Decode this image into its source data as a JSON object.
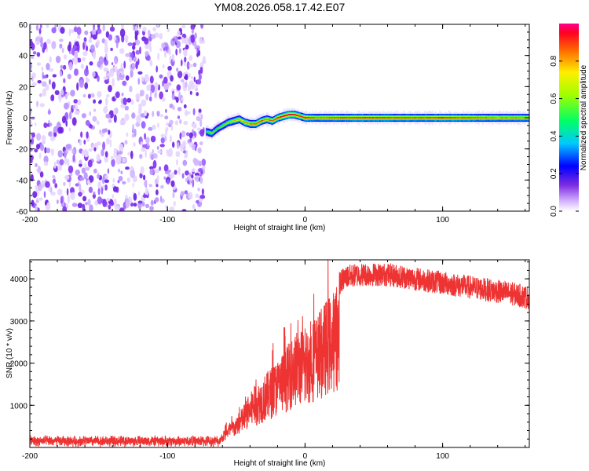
{
  "title": "YM08.2026.058.17.42.E07",
  "chart_data": [
    {
      "type": "heatmap",
      "name": "spectrogram",
      "xlabel": "Height of straight line (km)",
      "ylabel": "Frequency (Hz)",
      "xlim": [
        -200,
        163
      ],
      "ylim": [
        -60,
        60
      ],
      "x_ticks": [
        "-200",
        "-100",
        "0",
        "100"
      ],
      "y_ticks": [
        "60",
        "40",
        "20",
        "0",
        "-20",
        "-40",
        "-60"
      ],
      "noise_region_x": [
        -200,
        -73
      ],
      "ridge": {
        "x": [
          -72,
          -68,
          -64,
          -60,
          -56,
          -52,
          -48,
          -44,
          -40,
          -36,
          -32,
          -28,
          -24,
          -20,
          -16,
          -12,
          -8,
          -4,
          0,
          4,
          10,
          20,
          40,
          60,
          80,
          100,
          120,
          140,
          163
        ],
        "y": [
          -9,
          -10,
          -7,
          -5,
          -3,
          -2,
          -1,
          -3,
          -4,
          -4,
          -2,
          -1,
          -2,
          0,
          1,
          2,
          2,
          1,
          0,
          0,
          0,
          0,
          0,
          0,
          0,
          0,
          0,
          0,
          0
        ],
        "amplitude": [
          0.5,
          0.6,
          0.55,
          0.6,
          0.65,
          0.7,
          0.75,
          0.8,
          0.8,
          0.85,
          0.85,
          0.8,
          0.85,
          0.9,
          0.95,
          1.0,
          0.95,
          0.9,
          0.9,
          0.85,
          0.8,
          0.85,
          0.9,
          0.88,
          0.85,
          0.9,
          0.85,
          0.8,
          0.8
        ]
      },
      "colorbar": {
        "label": "Normalized spectral amplitude",
        "range": [
          0,
          1
        ],
        "ticks": [
          "0.0",
          "0.2",
          "0.4",
          "0.6",
          "0.8"
        ],
        "colors": [
          "#ffffff",
          "#8a2be2",
          "#0000ff",
          "#00ffff",
          "#00ff00",
          "#ffff00",
          "#ff8000",
          "#ff0000",
          "#ff0080"
        ]
      }
    },
    {
      "type": "line",
      "name": "snr",
      "xlabel": "Height of straight line (km)",
      "ylabel": "SNR (10 * v/v)",
      "xlim": [
        -200,
        163
      ],
      "ylim": [
        0,
        4450
      ],
      "x_ticks": [
        "-200",
        "-100",
        "0",
        "100"
      ],
      "y_ticks": [
        "1000",
        "2000",
        "3000",
        "4000"
      ],
      "color": "#ee3333",
      "baseline": {
        "x_range": [
          -200,
          -62
        ],
        "level": 150,
        "noise": 150
      },
      "envelope": {
        "x": [
          -62,
          -55,
          -50,
          -45,
          -40,
          -35,
          -30,
          -25,
          -20,
          -15,
          -10,
          -5,
          0,
          5,
          10,
          15,
          20,
          25,
          30,
          40,
          50,
          60,
          70,
          80,
          90,
          100,
          110,
          120,
          130,
          140,
          150,
          163
        ],
        "y": [
          250,
          600,
          700,
          1000,
          1300,
          1500,
          1700,
          1900,
          2100,
          2300,
          2600,
          2800,
          2800,
          3000,
          3200,
          3500,
          3700,
          3900,
          4050,
          4100,
          4100,
          4100,
          4050,
          4000,
          3950,
          3900,
          3850,
          3800,
          3750,
          3700,
          3650,
          3550
        ]
      }
    }
  ]
}
